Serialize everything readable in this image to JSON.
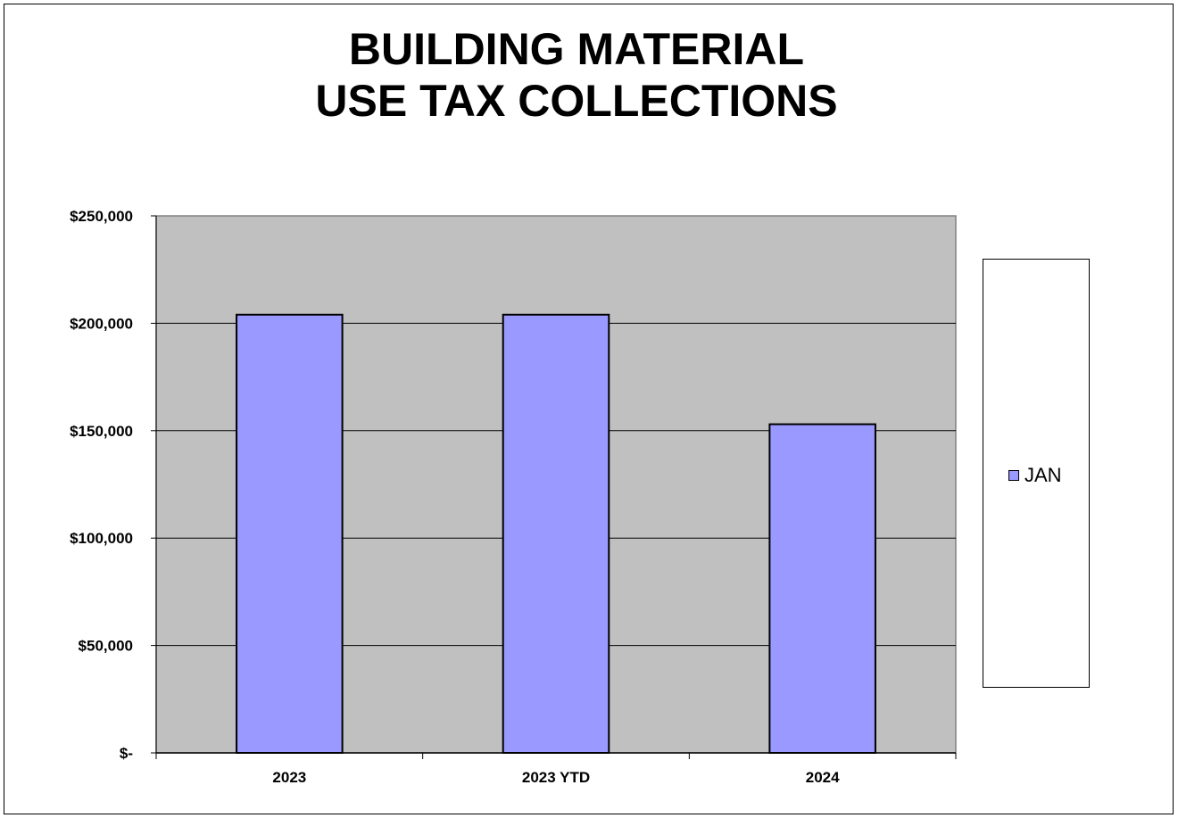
{
  "chart_data": {
    "type": "bar",
    "title_lines": [
      "BUILDING MATERIAL",
      "USE TAX COLLECTIONS"
    ],
    "categories": [
      "2023",
      "2023 YTD",
      "2024"
    ],
    "series": [
      {
        "name": "JAN",
        "values": [
          204000,
          204000,
          153000
        ],
        "color": "#9999ff"
      }
    ],
    "ylim": [
      0,
      250000
    ],
    "yticks": [
      {
        "value": 0,
        "label": "$-"
      },
      {
        "value": 50000,
        "label": "$50,000"
      },
      {
        "value": 100000,
        "label": "$100,000"
      },
      {
        "value": 150000,
        "label": "$150,000"
      },
      {
        "value": 200000,
        "label": "$200,000"
      },
      {
        "value": 250000,
        "label": "$250,000"
      }
    ],
    "plot_background": "#c0c0c0",
    "grid": true,
    "legend_position": "right"
  }
}
